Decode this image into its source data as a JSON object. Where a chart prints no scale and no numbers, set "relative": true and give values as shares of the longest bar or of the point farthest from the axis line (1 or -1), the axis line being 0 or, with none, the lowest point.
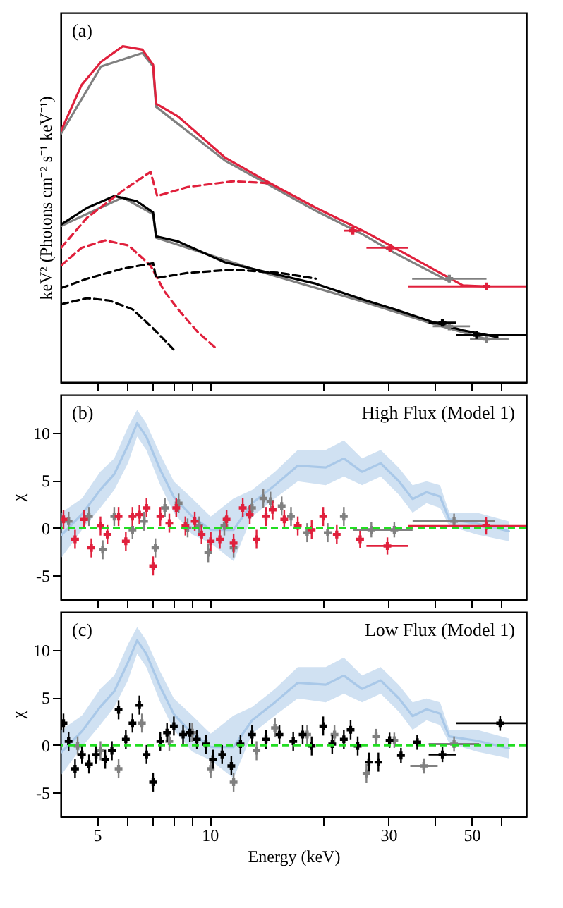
{
  "chart_data": [
    {
      "type": "line",
      "relative": true,
      "log": "x",
      "ylabel": "keV² (Photons cm⁻² s⁻¹ keV⁻¹)",
      "xlim": [
        4,
        70
      ],
      "xticks": [
        5,
        {
          "value": 6,
          "label": null
        },
        {
          "value": 7,
          "label": null
        },
        {
          "value": 8,
          "label": null
        },
        {
          "value": 9,
          "label": null
        },
        10,
        {
          "value": 20,
          "label": null
        },
        30,
        {
          "value": 40,
          "label": null
        },
        50,
        {
          "value": 60,
          "label": null
        }
      ],
      "tick_labels": false,
      "annotations": [
        "(a)"
      ],
      "series": [
        {
          "color": "#808080",
          "line_style": "solid",
          "x": [
            4.01,
            5.13,
            6.61,
            7.06,
            7.19,
            10.97,
            19.2,
            25.6,
            31.1,
            43.6
          ],
          "values": [
            0.74,
            0.94,
            0.98,
            0.94,
            0.82,
            0.66,
            0.51,
            0.44,
            0.385,
            0.3
          ]
        },
        {
          "color": "#808080",
          "line_style": "solid",
          "x": [
            4.01,
            5.86,
            7.06,
            7.19,
            14.5,
            25.6,
            39.1,
            54.8
          ],
          "values": [
            0.465,
            0.55,
            0.5,
            0.43,
            0.32,
            0.24,
            0.175,
            0.128
          ]
        },
        {
          "color": "#e0203c",
          "line_style": "solid",
          "x": [
            4.01,
            4.55,
            5.13,
            5.86,
            6.61,
            7.06,
            7.19,
            8.23,
            10.97,
            14.5,
            19.2,
            25.6,
            31.1,
            47.4,
            54.8
          ],
          "values": [
            0.748,
            0.885,
            0.954,
            1,
            0.99,
            0.945,
            0.829,
            0.791,
            0.669,
            0.592,
            0.519,
            0.451,
            0.4,
            0.288,
            0.285
          ]
        },
        {
          "color": "#000000",
          "line_style": "solid",
          "x": [
            4.01,
            4.71,
            5.57,
            6.38,
            7.06,
            7.19,
            8.23,
            10.97,
            14.5,
            19.2,
            25.6,
            31.1,
            39.1,
            47.4,
            58.6
          ],
          "values": [
            0.469,
            0.519,
            0.554,
            0.539,
            0.505,
            0.434,
            0.419,
            0.357,
            0.325,
            0.293,
            0.246,
            0.217,
            0.18,
            0.154,
            0.134
          ]
        },
        {
          "color": "#e0203c",
          "line_style": "dashed",
          "x": [
            4.01,
            4.71,
            5.86,
            6.95,
            7.24,
            8.73,
            11.55,
            14.5
          ],
          "values": [
            0.4,
            0.49,
            0.57,
            0.626,
            0.554,
            0.581,
            0.598,
            0.592
          ]
        },
        {
          "color": "#e0203c",
          "line_style": "dashed",
          "x": [
            4.01,
            4.55,
            5.26,
            6.07,
            6.95,
            7.57,
            8.23,
            9.27,
            10.5
          ],
          "values": [
            0.347,
            0.4,
            0.422,
            0.407,
            0.347,
            0.27,
            0.217,
            0.15,
            0.096
          ]
        },
        {
          "color": "#000000",
          "line_style": "dashed",
          "x": [
            4.01,
            4.71,
            5.86,
            7.06,
            7.19,
            8.73,
            11.55,
            15.4,
            19.2
          ],
          "values": [
            0.28,
            0.308,
            0.338,
            0.354,
            0.31,
            0.325,
            0.335,
            0.325,
            0.308
          ]
        },
        {
          "color": "#000000",
          "line_style": "dashed",
          "x": [
            4.01,
            4.71,
            5.39,
            6.22,
            7.06,
            8.02
          ],
          "values": [
            0.232,
            0.25,
            0.243,
            0.217,
            0.16,
            0.096
          ]
        },
        {
          "type": "scatter",
          "marker": "cross",
          "color": "#808080",
          "x": [
            43.6,
            43.6,
            54.8
          ],
          "values": [
            0.308,
            0.166,
            0.128
          ],
          "xerrors": [
            [
              34.7,
              54.8
            ],
            [
              39.4,
              49.5
            ],
            [
              49.5,
              62.8
            ]
          ]
        },
        {
          "type": "scatter",
          "marker": "cross",
          "color": "#e0203c",
          "x": [
            24.1,
            30.3,
            54.8
          ],
          "values": [
            0.451,
            0.4,
            0.285
          ],
          "xerrors": [
            [
              22.8,
              25.5
            ],
            [
              26.2,
              33.8
            ],
            [
              33.8,
              70
            ]
          ]
        },
        {
          "type": "scatter",
          "marker": "cross",
          "color": "#000000",
          "x": [
            41.8,
            51.6
          ],
          "values": [
            0.177,
            0.14
          ],
          "xerrors": [
            [
              38.4,
              45.5
            ],
            [
              45.5,
              70
            ]
          ]
        }
      ]
    },
    {
      "type": "scatter",
      "log": "x",
      "ylabel": "χ",
      "xlim": [
        4,
        70
      ],
      "xticks": [
        5,
        {
          "value": 6,
          "label": null
        },
        {
          "value": 7,
          "label": null
        },
        {
          "value": 8,
          "label": null
        },
        {
          "value": 9,
          "label": null
        },
        10,
        {
          "value": 20,
          "label": null
        },
        30,
        {
          "value": 40,
          "label": null
        },
        50,
        {
          "value": 60,
          "label": null
        }
      ],
      "ylim": [
        -7.5,
        14
      ],
      "yticks": [
        -5,
        0,
        5,
        10
      ],
      "tick_labels": "y",
      "annotations": [
        "(b)",
        "High Flux (Model 1)"
      ],
      "ref_lines": [
        {
          "axis": "y",
          "value": 0,
          "color": "#22dd22",
          "line_style": "dashed"
        }
      ],
      "series": [
        {
          "type": "line",
          "color": "#a9c8e8",
          "line_style": "solid",
          "x": [
            4.02,
            4.56,
            5.1,
            5.56,
            6.05,
            6.4,
            6.77,
            7.38,
            8.02,
            8.98,
            10.06,
            11.58,
            12.97,
            14.93,
            17.18,
            20.4,
            22.8,
            25.5,
            28.6,
            32.0,
            34.8,
            37.9,
            41.2,
            43.6,
            51.7,
            62.9
          ],
          "values": [
            -0.75,
            1.45,
            4.0,
            5.65,
            8.7,
            11.0,
            9.6,
            6.1,
            3.25,
            1.2,
            -0.2,
            -0.2,
            2.6,
            4.5,
            6.55,
            6.35,
            7.3,
            5.9,
            6.8,
            4.9,
            3.05,
            3.75,
            3.3,
            0.9,
            0.45,
            -0.35
          ],
          "upper": [
            1.6,
            3.1,
            5.9,
            7.3,
            10.6,
            12.4,
            11.0,
            7.7,
            4.9,
            3.1,
            1.2,
            3.1,
            4.0,
            5.9,
            8.2,
            8.2,
            9.2,
            7.3,
            8.2,
            6.3,
            4.5,
            4.9,
            4.5,
            1.6,
            1.6,
            0.7
          ],
          "lower": [
            -3.1,
            -0.2,
            2.1,
            4.0,
            6.8,
            9.6,
            8.2,
            4.5,
            1.6,
            -0.7,
            -1.6,
            -3.5,
            1.2,
            3.1,
            4.9,
            4.5,
            5.4,
            4.5,
            5.4,
            3.5,
            1.6,
            2.6,
            2.1,
            0.2,
            -0.7,
            -1.4
          ]
        },
        {
          "marker": "cross",
          "color": "#808080",
          "x": [
            4.2,
            4.76,
            5.18,
            5.56,
            6.22,
            6.68,
            7.16,
            7.59,
            8.26,
            8.73,
            9.37,
            9.91,
            10.94,
            11.58,
            12.97,
            13.9,
            14.52,
            15.56,
            16.48,
            18.2,
            20.65,
            22.8,
            27.0,
            31.1,
            44.9
          ],
          "values": [
            0.7,
            1.2,
            -2.3,
            1.2,
            -0.2,
            0.7,
            -2.1,
            2.1,
            2.6,
            0,
            0.2,
            -2.6,
            0.2,
            -2.1,
            2.1,
            3.1,
            2.8,
            2.3,
            1.2,
            -0.5,
            -0.5,
            1.2,
            -0.2,
            -0.2,
            0.7
          ],
          "errors": [
            1,
            1,
            1,
            1,
            1,
            1,
            1,
            1,
            1,
            1,
            1,
            1,
            1,
            1,
            1,
            1,
            1,
            1,
            1,
            1,
            1,
            1,
            0.8,
            0.8,
            0.8
          ],
          "xerrors": [
            null,
            null,
            null,
            null,
            null,
            null,
            null,
            null,
            null,
            null,
            null,
            null,
            null,
            null,
            null,
            null,
            null,
            null,
            null,
            null,
            null,
            null,
            [
              24.1,
              31.1
            ],
            [
              27.0,
              34.8
            ],
            [
              34.8,
              57.8
            ]
          ]
        },
        {
          "marker": "cross",
          "color": "#e0203c",
          "x": [
            4.07,
            4.37,
            4.62,
            4.83,
            5.11,
            5.33,
            5.71,
            5.97,
            6.22,
            6.49,
            6.78,
            7.06,
            7.38,
            7.8,
            8.14,
            8.61,
            9.12,
            9.51,
            10.06,
            10.64,
            11.09,
            11.58,
            12.25,
            12.79,
            13.33,
            14.13,
            14.72,
            15.81,
            17.18,
            18.71,
            20.09,
            21.83,
            25.2,
            29.8,
            54.7
          ],
          "values": [
            0.9,
            -1.2,
            0.9,
            -2.1,
            0.2,
            -0.7,
            1.2,
            -1.4,
            1.2,
            1.4,
            2.1,
            -4.0,
            1.2,
            0.5,
            2.1,
            0.2,
            0.7,
            -0.7,
            -1.4,
            -1.2,
            0.9,
            -1.6,
            2.1,
            1.4,
            -1.2,
            1.2,
            1.9,
            0.9,
            0.2,
            -0.2,
            1.2,
            -0.7,
            -1.2,
            -1.9,
            0.2
          ],
          "errors": [
            1,
            1,
            1,
            1,
            1,
            1,
            1,
            1,
            1,
            1,
            1,
            1,
            1,
            1,
            1,
            1,
            1,
            1,
            1,
            1,
            1,
            1,
            1,
            1,
            1,
            1,
            1,
            1,
            1,
            1,
            1,
            1,
            0.9,
            0.9,
            0.9
          ],
          "xerrors": [
            null,
            null,
            null,
            null,
            null,
            null,
            null,
            null,
            null,
            null,
            null,
            null,
            null,
            null,
            null,
            null,
            null,
            null,
            null,
            null,
            null,
            null,
            null,
            null,
            null,
            null,
            null,
            null,
            null,
            null,
            null,
            null,
            null,
            [
              26.2,
              33.8
            ],
            [
              33.8,
              70
            ]
          ]
        }
      ]
    },
    {
      "type": "scatter",
      "log": "x",
      "ylabel": "χ",
      "xlabel": "Energy (keV)",
      "xlim": [
        4,
        70
      ],
      "xticks": [
        5,
        {
          "value": 6,
          "label": null
        },
        {
          "value": 7,
          "label": null
        },
        {
          "value": 8,
          "label": null
        },
        {
          "value": 9,
          "label": null
        },
        10,
        {
          "value": 20,
          "label": null
        },
        30,
        {
          "value": 40,
          "label": null
        },
        50,
        {
          "value": 60,
          "label": null
        }
      ],
      "ylim": [
        -7.5,
        14
      ],
      "yticks": [
        -5,
        0,
        5,
        10
      ],
      "annotations": [
        "(c)",
        "Low Flux (Model 1)"
      ],
      "ref_lines": [
        {
          "axis": "y",
          "value": 0,
          "color": "#22dd22",
          "line_style": "dashed"
        }
      ],
      "series": [
        {
          "type": "line",
          "color": "#a9c8e8",
          "line_style": "solid",
          "x": [
            4.02,
            4.56,
            5.1,
            5.56,
            6.05,
            6.4,
            6.77,
            7.38,
            8.02,
            8.98,
            10.06,
            11.58,
            12.97,
            14.93,
            17.18,
            20.4,
            22.8,
            25.5,
            28.6,
            32.0,
            34.8,
            37.9,
            41.2,
            43.6,
            51.7,
            62.9
          ],
          "values": [
            -0.75,
            1.45,
            4.0,
            5.65,
            8.7,
            11.0,
            9.6,
            6.1,
            3.25,
            1.2,
            -0.2,
            -0.2,
            2.6,
            4.5,
            6.55,
            6.35,
            7.3,
            5.9,
            6.8,
            4.9,
            3.05,
            3.75,
            3.3,
            0.9,
            0.45,
            -0.35
          ],
          "upper": [
            1.6,
            3.1,
            5.9,
            7.3,
            10.6,
            12.4,
            11.0,
            7.7,
            4.9,
            3.1,
            1.2,
            3.1,
            4.0,
            5.9,
            8.2,
            8.2,
            9.2,
            7.3,
            8.2,
            6.3,
            4.5,
            4.9,
            4.5,
            1.6,
            1.6,
            0.7
          ],
          "lower": [
            -3.1,
            -0.2,
            2.1,
            4.0,
            6.8,
            9.6,
            8.2,
            4.5,
            1.6,
            -0.7,
            -1.6,
            -3.5,
            1.2,
            3.1,
            4.9,
            4.5,
            5.4,
            4.5,
            5.4,
            3.5,
            1.6,
            2.6,
            2.1,
            0.2,
            -0.7,
            -1.4
          ]
        },
        {
          "marker": "cross",
          "color": "#808080",
          "x": [
            4.44,
            5.11,
            5.71,
            6.59,
            7.8,
            8.98,
            10.06,
            11.58,
            13.33,
            14.93,
            18.2,
            21.53,
            26.2,
            27.8,
            31.1,
            37.3,
            44.9
          ],
          "values": [
            -0.1,
            -0.6,
            -2.5,
            2.3,
            0.4,
            1.3,
            -2.5,
            -3.9,
            -0.6,
            1.8,
            1.1,
            1.1,
            -3.0,
            0.9,
            0.5,
            -2.2,
            0.1
          ],
          "errors": [
            1,
            1,
            1,
            1,
            1,
            1,
            1,
            1,
            1,
            1,
            1,
            1,
            1,
            0.8,
            0.8,
            0.8,
            0.8
          ],
          "xerrors": [
            null,
            null,
            null,
            null,
            null,
            null,
            null,
            null,
            null,
            null,
            null,
            null,
            null,
            null,
            null,
            [
              34.3,
              40.6
            ],
            [
              38.4,
              52.4
            ]
          ]
        },
        {
          "marker": "cross",
          "color": "#000000",
          "x": [
            4.07,
            4.2,
            4.37,
            4.56,
            4.76,
            4.97,
            5.26,
            5.48,
            5.71,
            5.97,
            6.22,
            6.49,
            6.78,
            7.06,
            7.38,
            7.69,
            8.02,
            8.49,
            8.85,
            9.24,
            9.77,
            10.2,
            10.79,
            11.42,
            12.08,
            12.97,
            14.13,
            15.35,
            16.71,
            17.7,
            18.71,
            20.09,
            21.23,
            22.8,
            23.77,
            24.83,
            26.6,
            28.2,
            30.2,
            32.4,
            35.8,
            41.8,
            59.6
          ],
          "values": [
            2.3,
            0.4,
            -2.5,
            -1.0,
            -2.0,
            -1.0,
            -1.5,
            -0.6,
            3.7,
            0.6,
            2.3,
            4.2,
            -1.0,
            -3.9,
            0.4,
            1.3,
            2.0,
            1.1,
            1.3,
            0.6,
            0.1,
            -1.5,
            -1.0,
            -2.2,
            0.1,
            1.1,
            0.6,
            1.1,
            0.4,
            1.1,
            -0.1,
            2.0,
            0.1,
            0.6,
            1.6,
            -0.1,
            -1.8,
            -1.8,
            0.5,
            -1.1,
            0.3,
            -1.0,
            2.3
          ],
          "errors": [
            1,
            1,
            1,
            1,
            1,
            1,
            1,
            1,
            1,
            1,
            1,
            1,
            1,
            1,
            1,
            1,
            1,
            1,
            1,
            1,
            1,
            1,
            1,
            1,
            1,
            1,
            1,
            1,
            1,
            1,
            1,
            1,
            1,
            1,
            1,
            1,
            1,
            1,
            0.8,
            0.8,
            0.8,
            0.8,
            0.8
          ],
          "xerrors": [
            null,
            null,
            null,
            null,
            null,
            null,
            null,
            null,
            null,
            null,
            null,
            null,
            null,
            null,
            null,
            null,
            null,
            null,
            null,
            null,
            null,
            null,
            null,
            null,
            null,
            null,
            null,
            null,
            null,
            null,
            null,
            null,
            null,
            null,
            null,
            null,
            null,
            null,
            null,
            null,
            null,
            [
              38.4,
              45.5
            ],
            [
              45.5,
              70
            ]
          ]
        }
      ]
    }
  ]
}
